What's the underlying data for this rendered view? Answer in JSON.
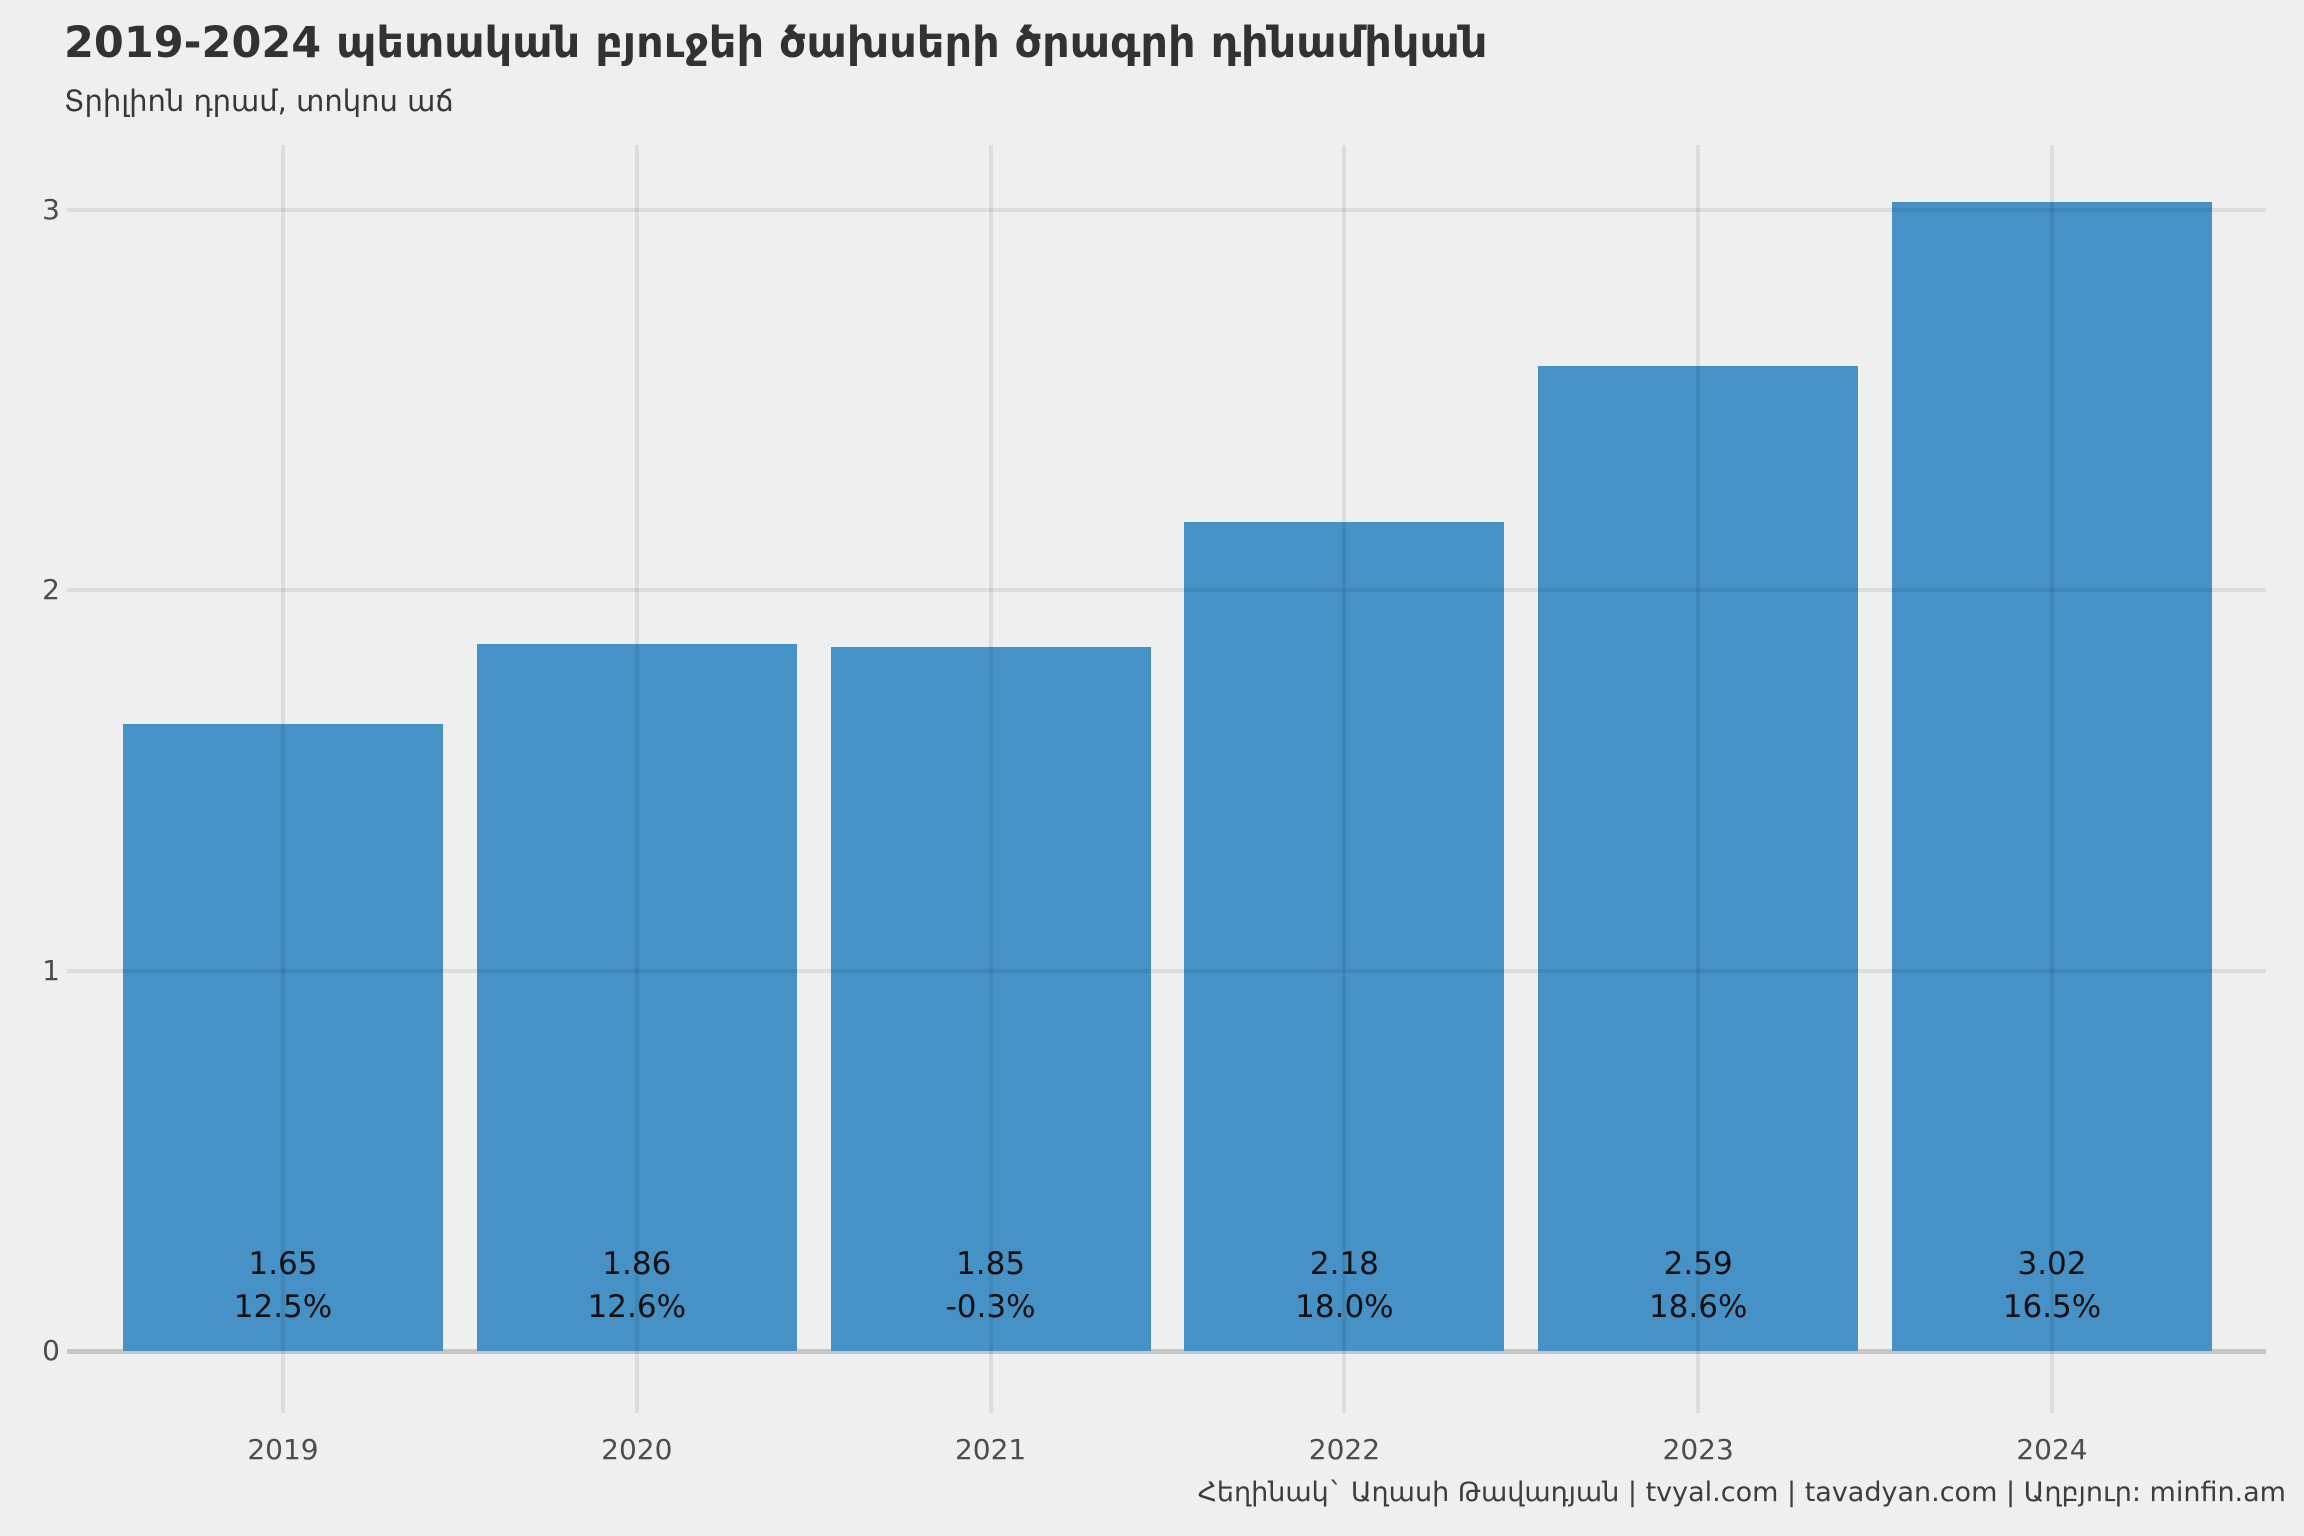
{
  "header": {
    "title": "2019-2024 պետական բյուջեի ծախսերի ծրագրի դինամիկան",
    "subtitle": "Տրիլիոն դրամ, տոկոս աճ"
  },
  "footer": {
    "credit": "Հեղինակ` Աղասի Թավադյան   |   tvyal.com   |   tavadyan.com   |   Աղբյուր: minfin.am"
  },
  "chart_data": {
    "type": "bar",
    "title": "2019-2024 պետական բյուջեի ծախսերի ծրագրի դինամիկան",
    "subtitle": "Տրիլիոն դրամ, տոկոս աճ",
    "categories": [
      "2019",
      "2020",
      "2021",
      "2022",
      "2023",
      "2024"
    ],
    "values": [
      1.65,
      1.86,
      1.85,
      2.18,
      2.59,
      3.02
    ],
    "value_labels": [
      "1.65",
      "1.86",
      "1.85",
      "2.18",
      "2.59",
      "3.02"
    ],
    "growth_labels": [
      "12.5%",
      "12.6%",
      "-0.3%",
      "18.0%",
      "18.6%",
      "16.5%"
    ],
    "xlabel": "",
    "ylabel": "",
    "yticks": [
      0,
      1,
      2,
      3
    ],
    "ylim": [
      0,
      3.1
    ],
    "grid": true,
    "legend": false,
    "bar_color": "#4691c6",
    "background_color": "#efefef",
    "grid_color": "#d9d9d9",
    "axis_text_color": "#4d4d4d",
    "title_color": "#323232"
  }
}
